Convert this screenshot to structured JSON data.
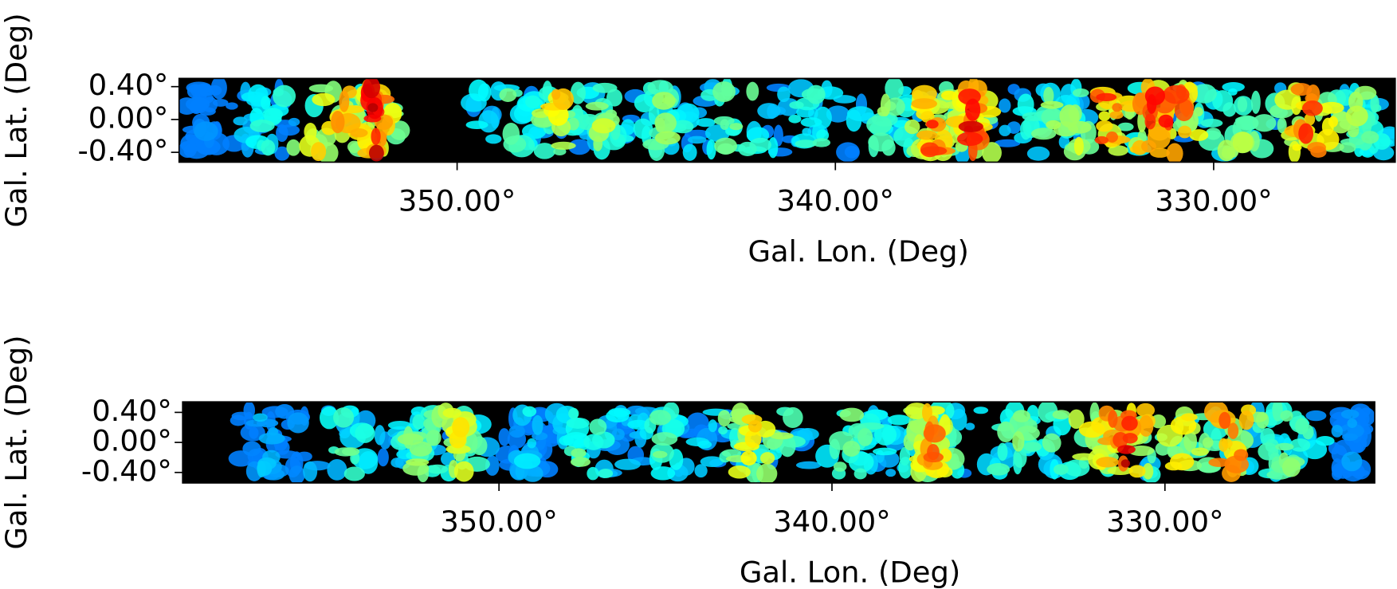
{
  "chart_data": [
    {
      "type": "image",
      "xlabel": "Gal. Lon. (Deg)",
      "ylabel": "Gal. Lat. (Deg)",
      "xlim": [
        357.35,
        325.2
      ],
      "ylim": [
        -0.52,
        0.5
      ],
      "xticks": [
        {
          "value": 350,
          "label": "350.00°"
        },
        {
          "value": 340,
          "label": "340.00°"
        },
        {
          "value": 330,
          "label": "330.00°"
        }
      ],
      "yticks": [
        {
          "value": 0.4,
          "label": "0.40°"
        },
        {
          "value": 0,
          "label": "0.00°"
        },
        {
          "value": -0.4,
          "label": "-0.40°"
        }
      ]
    },
    {
      "type": "image",
      "xlabel": "Gal. Lon. (Deg)",
      "ylabel": "Gal. Lat. (Deg)",
      "xlim": [
        359.5,
        323.7
      ],
      "ylim": [
        -0.54,
        0.54
      ],
      "xticks": [
        {
          "value": 350,
          "label": "350.00°"
        },
        {
          "value": 340,
          "label": "340.00°"
        },
        {
          "value": 330,
          "label": "330.00°"
        }
      ],
      "yticks": [
        {
          "value": 0.4,
          "label": "0.40°"
        },
        {
          "value": 0,
          "label": "0.00°"
        },
        {
          "value": -0.4,
          "label": "-0.40°"
        }
      ]
    }
  ]
}
